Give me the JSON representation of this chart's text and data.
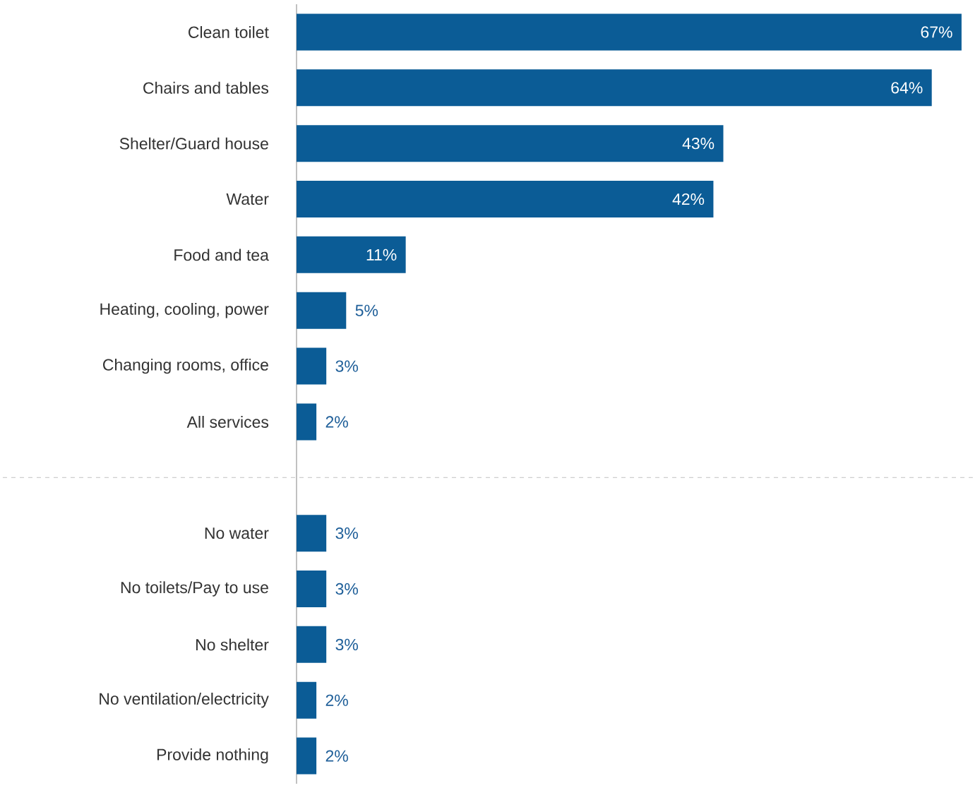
{
  "chart_data": {
    "type": "bar",
    "orientation": "horizontal",
    "categories": [
      "Clean toilet",
      "Chairs and tables",
      "Shelter/Guard house",
      "Water",
      "Food and tea",
      "Heating, cooling, power",
      "Changing rooms, office",
      "All services",
      null,
      "No water",
      "No toilets/Pay to use",
      "No  shelter",
      "No ventilation/electricity",
      "Provide nothing"
    ],
    "values": [
      67,
      64,
      43,
      42,
      11,
      5,
      3,
      2,
      null,
      3,
      3,
      3,
      2,
      2
    ],
    "value_labels": [
      "67%",
      "64%",
      "43%",
      "42%",
      "11%",
      "5%",
      "3%",
      "2%",
      null,
      "3%",
      "3%",
      "3%",
      "2%",
      "2%"
    ],
    "color": "#0b5c96"
  }
}
